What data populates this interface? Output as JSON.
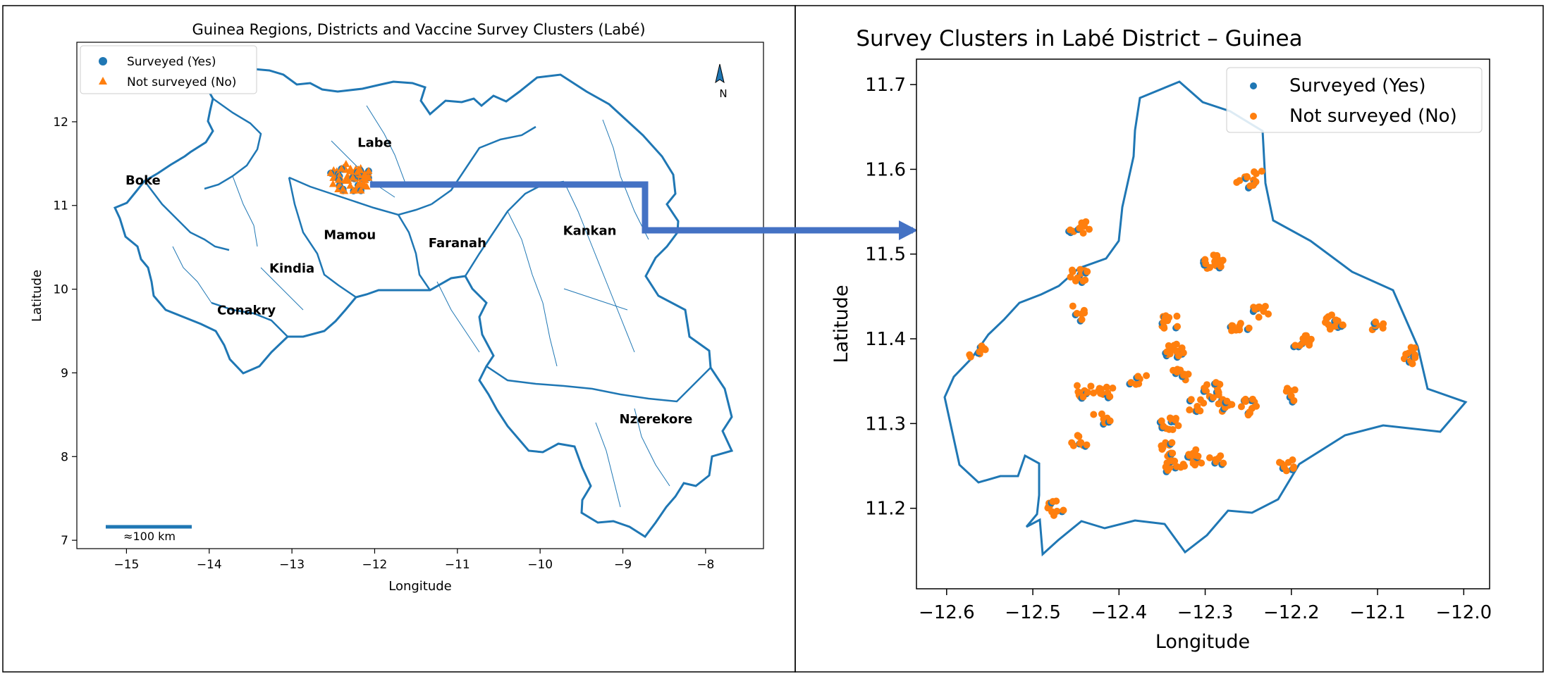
{
  "left_map": {
    "title": "Guinea Regions, Districts and Vaccine Survey Clusters (Labé)",
    "xlabel": "Longitude",
    "ylabel": "Latitude",
    "xlim": [
      -15.6,
      -7.3
    ],
    "ylim": [
      6.9,
      12.95
    ],
    "xticks": [
      "−15",
      "−14",
      "−13",
      "−12",
      "−11",
      "−10",
      "−9",
      "−8"
    ],
    "yticks": [
      "7",
      "8",
      "9",
      "10",
      "11",
      "12"
    ],
    "legend": {
      "yes": "Surveyed (Yes)",
      "no": "Not surveyed (No)"
    },
    "north_label": "N",
    "scale_label": "≈100 km",
    "regions": [
      {
        "name": "Boke",
        "lon": -14.8,
        "lat": 11.3
      },
      {
        "name": "Labe",
        "lon": -12.0,
        "lat": 11.75
      },
      {
        "name": "Mamou",
        "lon": -12.3,
        "lat": 10.65
      },
      {
        "name": "Faranah",
        "lon": -11.0,
        "lat": 10.55
      },
      {
        "name": "Kankan",
        "lon": -9.4,
        "lat": 10.7
      },
      {
        "name": "Kindia",
        "lon": -13.0,
        "lat": 10.25
      },
      {
        "name": "Conakry",
        "lon": -13.55,
        "lat": 9.75
      },
      {
        "name": "Nzerekore",
        "lon": -8.6,
        "lat": 8.45
      }
    ]
  },
  "right_map": {
    "title": "Survey Clusters in Labé District – Guinea",
    "xlabel": "Longitude",
    "ylabel": "Latitude",
    "xlim": [
      -12.635,
      -11.97
    ],
    "ylim": [
      11.105,
      11.73
    ],
    "xticks": [
      "−12.6",
      "−12.5",
      "−12.4",
      "−12.3",
      "−12.2",
      "−12.1",
      "−12.0"
    ],
    "yticks": [
      "11.2",
      "11.3",
      "11.4",
      "11.5",
      "11.6",
      "11.7"
    ],
    "legend": {
      "yes": "Surveyed (Yes)",
      "no": "Not surveyed (No)"
    }
  },
  "colors": {
    "border": "#1f77b4",
    "surveyed": "#1f77b4",
    "not_surveyed": "#ff7f0e",
    "arrow": "#4472c4"
  },
  "chart_data": [
    {
      "type": "scatter",
      "title": "Guinea Regions, Districts and Vaccine Survey Clusters (Labé)",
      "xlabel": "Longitude",
      "ylabel": "Latitude",
      "xlim": [
        -15.6,
        -7.3
      ],
      "ylim": [
        6.9,
        12.95
      ],
      "legend_position": "top-left",
      "series": [
        {
          "name": "Surveyed (Yes)",
          "marker": "circle",
          "center": [
            -12.3,
            11.33
          ]
        },
        {
          "name": "Not surveyed (No)",
          "marker": "triangle",
          "center": [
            -12.3,
            11.33
          ]
        }
      ]
    },
    {
      "type": "scatter",
      "title": "Survey Clusters in Labé District – Guinea",
      "xlabel": "Longitude",
      "ylabel": "Latitude",
      "xlim": [
        -12.635,
        -11.97
      ],
      "ylim": [
        11.105,
        11.73
      ],
      "legend_position": "top-right",
      "series": [
        {
          "name": "Surveyed (Yes)",
          "marker": "circle"
        },
        {
          "name": "Not surveyed (No)",
          "marker": "circle"
        }
      ],
      "clusters": [
        [
          -12.255,
          11.585
        ],
        [
          -12.24,
          11.59
        ],
        [
          -12.445,
          11.53
        ],
        [
          -12.445,
          11.475
        ],
        [
          -12.29,
          11.49
        ],
        [
          -12.45,
          11.43
        ],
        [
          -12.26,
          11.415
        ],
        [
          -12.235,
          11.435
        ],
        [
          -12.34,
          11.42
        ],
        [
          -12.15,
          11.42
        ],
        [
          -12.1,
          11.415
        ],
        [
          -12.565,
          11.385
        ],
        [
          -12.185,
          11.395
        ],
        [
          -12.06,
          11.38
        ],
        [
          -12.335,
          11.385
        ],
        [
          -12.375,
          11.35
        ],
        [
          -12.33,
          11.355
        ],
        [
          -12.44,
          11.34
        ],
        [
          -12.415,
          11.34
        ],
        [
          -12.29,
          11.34
        ],
        [
          -12.2,
          11.335
        ],
        [
          -12.31,
          11.32
        ],
        [
          -12.275,
          11.32
        ],
        [
          -12.25,
          11.32
        ],
        [
          -12.34,
          11.3
        ],
        [
          -12.42,
          11.305
        ],
        [
          -12.445,
          11.28
        ],
        [
          -12.345,
          11.27
        ],
        [
          -12.335,
          11.25
        ],
        [
          -12.31,
          11.26
        ],
        [
          -12.285,
          11.255
        ],
        [
          -12.205,
          11.25
        ],
        [
          -12.475,
          11.2
        ]
      ]
    }
  ]
}
